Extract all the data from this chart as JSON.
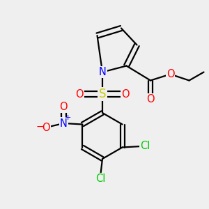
{
  "bg_color": "#efefef",
  "bond_color": "#000000",
  "bond_width": 1.6,
  "atom_colors": {
    "N_pyrrole": "#0000ff",
    "N_nitro": "#0000ff",
    "O": "#ff0000",
    "S": "#cccc00",
    "Cl": "#00cc00",
    "minus": "#ff0000"
  },
  "font_size_atom": 10.5
}
